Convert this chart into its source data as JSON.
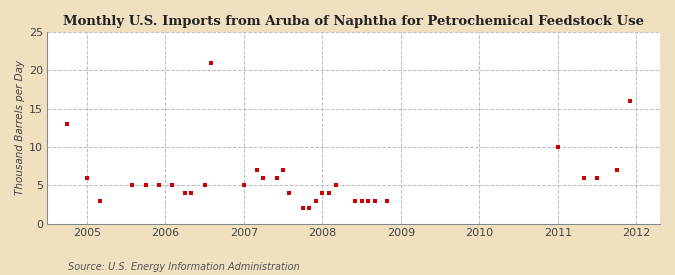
{
  "title": "Monthly U.S. Imports from Aruba of Naphtha for Petrochemical Feedstock Use",
  "ylabel": "Thousand Barrels per Day",
  "source": "Source: U.S. Energy Information Administration",
  "xlim": [
    2004.5,
    2012.3
  ],
  "ylim": [
    0,
    25
  ],
  "yticks": [
    0,
    5,
    10,
    15,
    20,
    25
  ],
  "xticks": [
    2005,
    2006,
    2007,
    2008,
    2009,
    2010,
    2011,
    2012
  ],
  "background_color": "#f0e0c0",
  "plot_bg_color": "#ffffff",
  "grid_color": "#bbbbbb",
  "marker_color": "#cc0000",
  "data_points": [
    [
      2004.75,
      13.0
    ],
    [
      2005.0,
      6.0
    ],
    [
      2005.17,
      3.0
    ],
    [
      2005.58,
      5.0
    ],
    [
      2005.75,
      5.0
    ],
    [
      2005.92,
      5.0
    ],
    [
      2006.08,
      5.0
    ],
    [
      2006.25,
      4.0
    ],
    [
      2006.33,
      4.0
    ],
    [
      2006.5,
      5.0
    ],
    [
      2006.58,
      21.0
    ],
    [
      2007.0,
      5.0
    ],
    [
      2007.17,
      7.0
    ],
    [
      2007.25,
      6.0
    ],
    [
      2007.42,
      6.0
    ],
    [
      2007.5,
      7.0
    ],
    [
      2007.58,
      4.0
    ],
    [
      2007.75,
      2.0
    ],
    [
      2007.83,
      2.0
    ],
    [
      2007.92,
      3.0
    ],
    [
      2008.0,
      4.0
    ],
    [
      2008.08,
      4.0
    ],
    [
      2008.17,
      5.0
    ],
    [
      2008.42,
      3.0
    ],
    [
      2008.5,
      3.0
    ],
    [
      2008.58,
      3.0
    ],
    [
      2008.67,
      3.0
    ],
    [
      2008.83,
      3.0
    ],
    [
      2011.0,
      10.0
    ],
    [
      2011.33,
      6.0
    ],
    [
      2011.5,
      6.0
    ],
    [
      2011.75,
      7.0
    ],
    [
      2011.92,
      16.0
    ]
  ]
}
